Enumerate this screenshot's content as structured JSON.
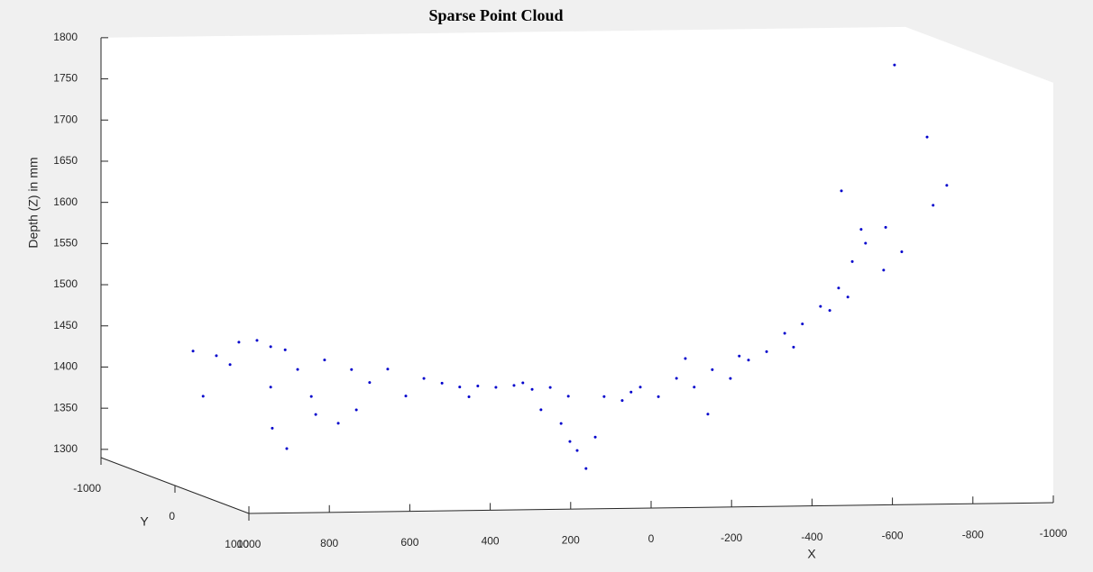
{
  "chart_data": {
    "type": "scatter3d",
    "title": "Sparse Point Cloud",
    "xlabel": "X",
    "ylabel": "Y",
    "zlabel": "Depth (Z) in mm",
    "xlim": [
      -1000,
      1000
    ],
    "ylim": [
      -1000,
      1000
    ],
    "zlim": [
      1290,
      1800
    ],
    "xticks": [
      1000,
      800,
      600,
      400,
      200,
      0,
      -200,
      -400,
      -600,
      -800,
      -1000
    ],
    "yticks": [
      -1000,
      0,
      1000
    ],
    "zticks": [
      1300,
      1350,
      1400,
      1450,
      1500,
      1550,
      1600,
      1650,
      1700,
      1750,
      1800
    ],
    "series": [
      {
        "color": "#0000cc",
        "x": [
          955,
          930,
          863,
          841,
          796,
          762,
          758,
          722,
          695,
          661,
          628,
          594,
          561,
          516,
          471,
          426,
          381,
          336,
          292,
          247,
          202,
          157,
          112,
          67,
          22,
          0,
          -22,
          -45,
          -67,
          -112,
          -157,
          -202,
          -247,
          -291,
          -336,
          -381,
          -426,
          -471,
          -516,
          -560,
          -605,
          -650,
          -684,
          -717,
          -762,
          -807,
          -657,
          -789,
          -870,
          -885,
          -919,
          -706,
          -767,
          40,
          18,
          90,
          726,
          897,
          650,
          549,
          269,
          135,
          -134,
          -269,
          -403,
          -538,
          -628,
          -673,
          -325,
          762
        ],
        "y": [
          0,
          0,
          0,
          0,
          0,
          0,
          0,
          0,
          0,
          0,
          0,
          0,
          0,
          0,
          0,
          0,
          0,
          0,
          0,
          0,
          0,
          0,
          0,
          0,
          0,
          0,
          0,
          0,
          0,
          0,
          0,
          0,
          0,
          0,
          0,
          0,
          0,
          0,
          0,
          0,
          0,
          0,
          0,
          0,
          0,
          0,
          0,
          0,
          0,
          0,
          0,
          0,
          0,
          0,
          0,
          0,
          0,
          0,
          0,
          0,
          0,
          0,
          0,
          0,
          0,
          0,
          0,
          0,
          0,
          0
        ],
        "z": [
          1453,
          1398,
          1436,
          1463,
          1465,
          1408,
          1358,
          1333,
          1429,
          1396,
          1440,
          1363,
          1428,
          1412,
          1428,
          1395,
          1416,
          1410,
          1405,
          1406,
          1404,
          1406,
          1401,
          1403,
          1392,
          1326,
          1304,
          1342,
          1391,
          1386,
          1402,
          1390,
          1412,
          1401,
          1422,
          1411,
          1433,
          1443,
          1465,
          1476,
          1497,
          1519,
          1551,
          1573,
          1540,
          1562,
          1637,
          1789,
          1701,
          1618,
          1642,
          1590,
          1592,
          1359,
          1337,
          1376,
          1453,
          1447,
          1374,
          1379,
          1393,
          1409,
          1396,
          1436,
          1438,
          1448,
          1492,
          1508,
          1368,
          1457
        ]
      }
    ]
  }
}
